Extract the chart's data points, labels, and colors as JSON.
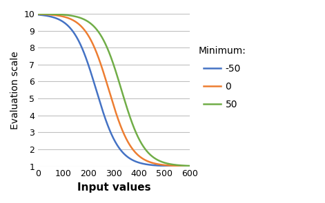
{
  "title": "",
  "xlabel": "Input values",
  "ylabel": "Evaluation scale",
  "xlim": [
    0,
    600
  ],
  "ylim": [
    1,
    10
  ],
  "xticks": [
    0,
    100,
    200,
    300,
    400,
    500,
    600
  ],
  "yticks": [
    1,
    2,
    3,
    4,
    5,
    6,
    7,
    8,
    9,
    10
  ],
  "legend_title": "Minimum:",
  "series": [
    {
      "label": "-50",
      "color": "#4472C4",
      "minimum": -50
    },
    {
      "label": "0",
      "color": "#ED7D31",
      "minimum": 0
    },
    {
      "label": "50",
      "color": "#70AD47",
      "minimum": 50
    }
  ],
  "max_val": 10,
  "min_val": 1,
  "midpoint": 280,
  "steepness": 0.022,
  "minimum_shift_scale": 1.0,
  "x_start": 0,
  "x_end": 600,
  "background_color": "#ffffff",
  "grid_color": "#C0C0C0",
  "xlabel_fontsize": 11,
  "ylabel_fontsize": 10,
  "legend_fontsize": 10,
  "tick_fontsize": 9,
  "linewidth": 1.8
}
